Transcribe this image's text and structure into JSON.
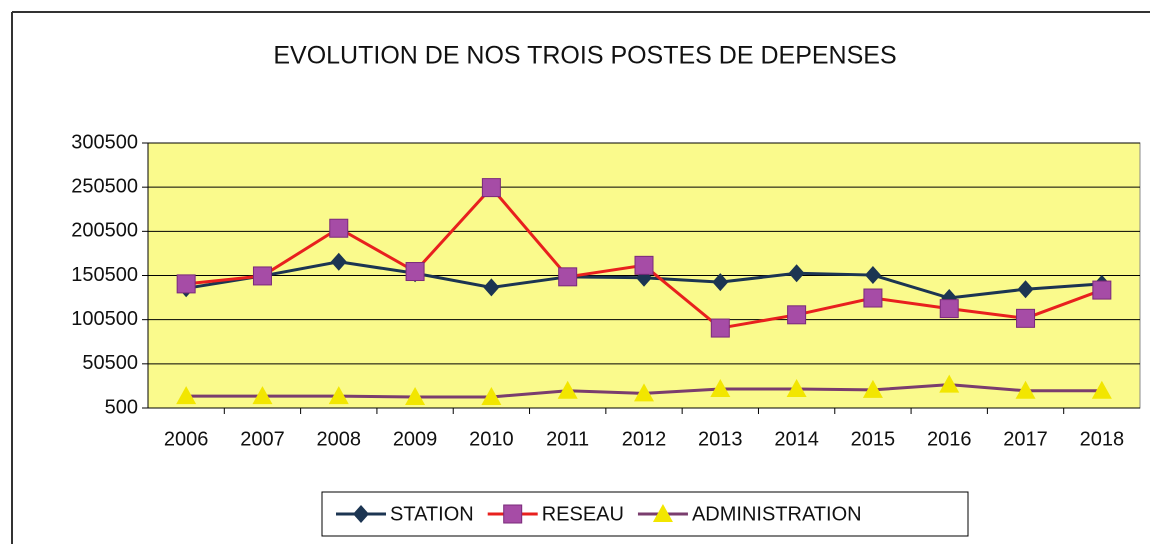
{
  "chart_data": {
    "type": "line",
    "title": "EVOLUTION DE NOS TROIS POSTES DE DEPENSES",
    "categories": [
      "2006",
      "2007",
      "2008",
      "2009",
      "2010",
      "2011",
      "2012",
      "2013",
      "2014",
      "2015",
      "2016",
      "2017",
      "2018"
    ],
    "series": [
      {
        "name": "STATION",
        "color": "#1c3552",
        "marker": "diamond",
        "marker_color": "#1c3552",
        "values": [
          136000,
          150000,
          166000,
          153000,
          137000,
          149000,
          148000,
          143000,
          153000,
          151000,
          125000,
          135000,
          141000
        ]
      },
      {
        "name": "RESEAU",
        "color": "#e8201e",
        "marker": "square",
        "marker_color": "#a64ca6",
        "values": [
          141000,
          150000,
          204000,
          155000,
          250000,
          149000,
          162000,
          91000,
          106000,
          125000,
          113000,
          102000,
          134000
        ]
      },
      {
        "name": "ADMINISTRATION",
        "color": "#7a3d6e",
        "marker": "triangle",
        "marker_color": "#f2e600",
        "values": [
          14000,
          14000,
          14000,
          13000,
          13000,
          20000,
          17000,
          22000,
          22000,
          21000,
          27000,
          20000,
          20000
        ]
      }
    ],
    "ylim": [
      500,
      300500
    ],
    "yticks": [
      500,
      50500,
      100500,
      150500,
      200500,
      250500,
      300500
    ],
    "grid": true,
    "plot_background": "#fafa8c",
    "legend": "bottom"
  }
}
